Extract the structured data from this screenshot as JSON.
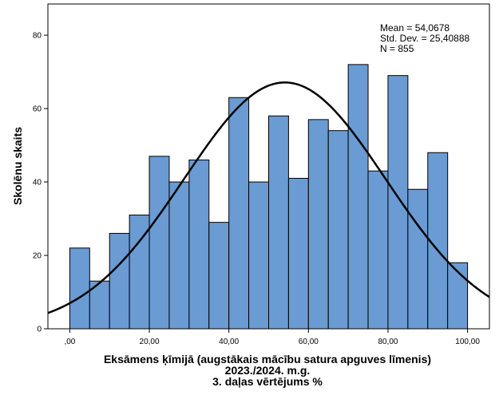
{
  "chart_data": {
    "type": "bar",
    "subtype": "histogram",
    "bin_edges": [
      0,
      5,
      10,
      15,
      20,
      25,
      30,
      35,
      40,
      45,
      50,
      55,
      60,
      65,
      70,
      75,
      80,
      85,
      90,
      95,
      100
    ],
    "values": [
      22,
      13,
      26,
      31,
      47,
      40,
      46,
      29,
      63,
      40,
      58,
      41,
      57,
      54,
      72,
      43,
      69,
      38,
      48,
      18
    ],
    "x_ticks": [
      0,
      20,
      40,
      60,
      80,
      100
    ],
    "x_tick_labels": [
      ",00",
      "20,00",
      "40,00",
      "60,00",
      "80,00",
      "100,00"
    ],
    "y_ticks": [
      0,
      20,
      40,
      60,
      80
    ],
    "y_tick_labels": [
      "0",
      "20",
      "40",
      "60",
      "80"
    ],
    "xlim": [
      -5.5,
      105.5
    ],
    "ylim": [
      0,
      88.5
    ],
    "xlabel_lines": [
      "Eksāmens ķīmijā (augstākais mācību satura apguves līmenis)",
      "2023./2024. m.g.",
      "3. daļas vērtējums %"
    ],
    "ylabel": "Skolēnu skaits",
    "stats": {
      "mean": 54.0678,
      "std_dev": 25.40888,
      "n": 855,
      "lines": [
        "Mean = 54,0678",
        "Std. Dev. = 25,40888",
        "N = 855"
      ]
    },
    "normal_curve": true,
    "grid": false,
    "bar_fill": "#6A9BD3",
    "bar_stroke": "#000000",
    "curve_color": "#000000"
  }
}
